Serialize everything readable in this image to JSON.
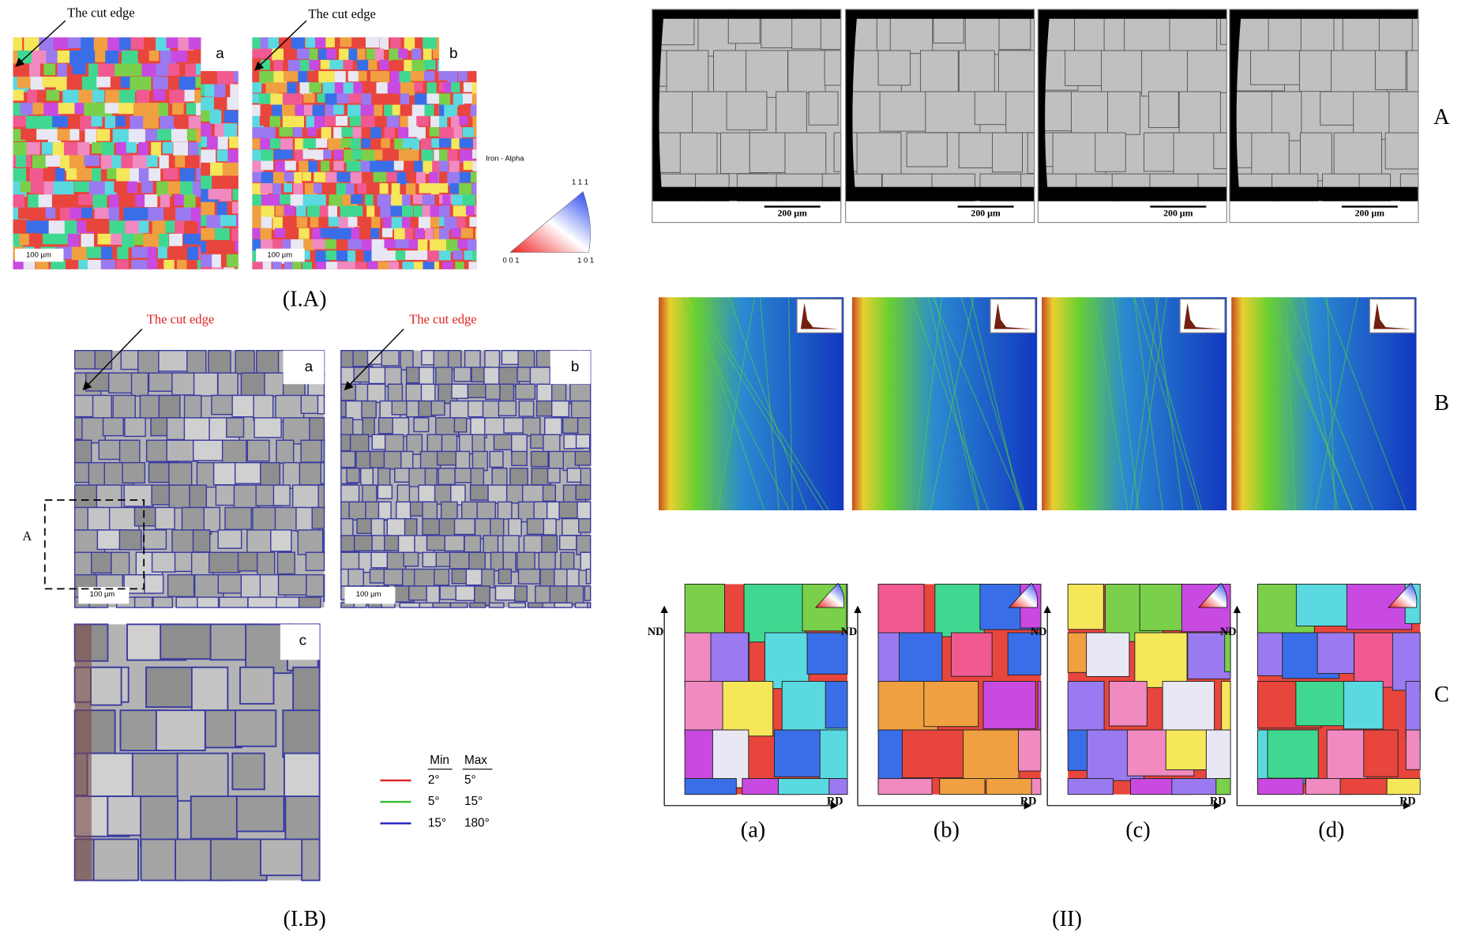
{
  "panel_IA": {
    "caption": "(I.A)",
    "annotations": [
      "The cut edge",
      "The cut edge"
    ],
    "labels": [
      "a",
      "b"
    ],
    "scale_bars": [
      "100 µm",
      "100 µm"
    ],
    "legend": {
      "title": "Iron - Alpha",
      "corners": [
        "1 1 1",
        "0 0 1",
        "1 0 1"
      ]
    }
  },
  "panel_IB": {
    "caption": "(I.B)",
    "annotations": [
      "The cut edge",
      "The cut edge"
    ],
    "labels": [
      "a",
      "b",
      "c"
    ],
    "region_label": "A",
    "scale_bars": [
      "100 µm",
      "100 µm"
    ],
    "legend": {
      "headers": [
        "Min",
        "Max"
      ],
      "rows": [
        [
          "2°",
          "5°"
        ],
        [
          "5°",
          "15°"
        ],
        [
          "15°",
          "180°"
        ]
      ]
    }
  },
  "panel_II": {
    "caption": "(II)",
    "row_labels": [
      "A",
      "B",
      "C"
    ],
    "column_labels": [
      "(a)",
      "(b)",
      "(c)",
      "(d)"
    ],
    "scale_bars": [
      "200 µm",
      "200 µm",
      "200 µm",
      "200 µm"
    ],
    "axes": [
      {
        "vertical": "ND",
        "horizontal": "RD"
      },
      {
        "vertical": "ND",
        "horizontal": "RD"
      },
      {
        "vertical": "ND",
        "horizontal": "RD"
      },
      {
        "vertical": "ND",
        "horizontal": "RD"
      }
    ]
  }
}
